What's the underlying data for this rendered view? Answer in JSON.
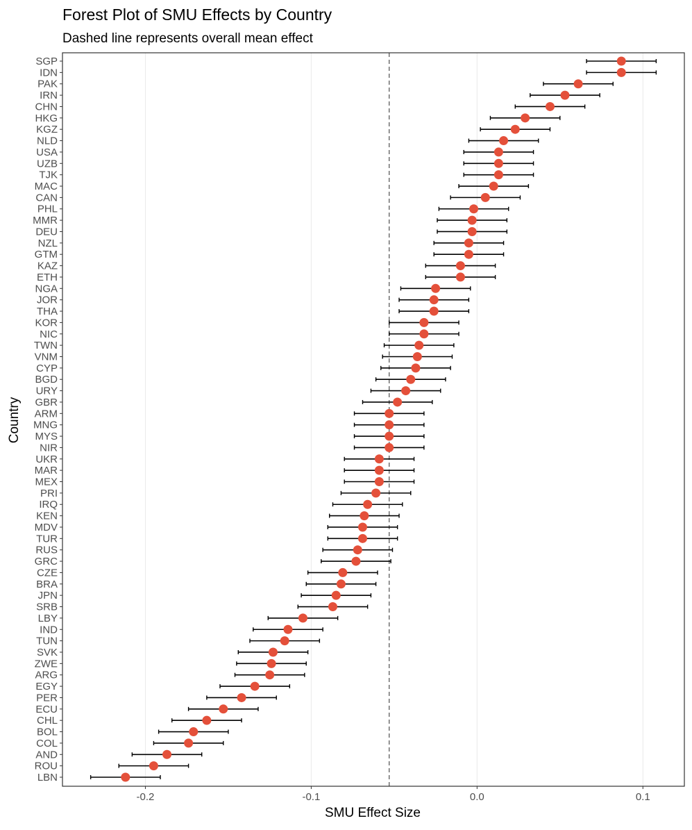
{
  "chart_data": {
    "type": "scatter",
    "title": "Forest Plot of SMU Effects by Country",
    "subtitle": "Dashed line represents overall mean effect",
    "xlabel": "SMU Effect Size",
    "ylabel": "Country",
    "xlim": [
      -0.25,
      0.125
    ],
    "xticks": [
      -0.2,
      -0.1,
      0.0,
      0.1
    ],
    "xtick_labels": [
      "-0.2",
      "-0.1",
      "0.0",
      "0.1"
    ],
    "mean_effect": -0.053,
    "point_color": "#E4503A",
    "grid": "vertical major lines only",
    "categories": [
      "SGP",
      "IDN",
      "PAK",
      "IRN",
      "CHN",
      "HKG",
      "KGZ",
      "NLD",
      "USA",
      "UZB",
      "TJK",
      "MAC",
      "CAN",
      "PHL",
      "MMR",
      "DEU",
      "NZL",
      "GTM",
      "KAZ",
      "ETH",
      "NGA",
      "JOR",
      "THA",
      "KOR",
      "NIC",
      "TWN",
      "VNM",
      "CYP",
      "BGD",
      "URY",
      "GBR",
      "ARM",
      "MNG",
      "MYS",
      "NIR",
      "UKR",
      "MAR",
      "MEX",
      "PRI",
      "IRQ",
      "KEN",
      "MDV",
      "TUR",
      "RUS",
      "GRC",
      "CZE",
      "BRA",
      "JPN",
      "SRB",
      "LBY",
      "IND",
      "TUN",
      "SVK",
      "ZWE",
      "ARG",
      "EGY",
      "PER",
      "ECU",
      "CHL",
      "BOL",
      "COL",
      "AND",
      "ROU",
      "LBN"
    ],
    "estimates": [
      0.087,
      0.087,
      0.061,
      0.053,
      0.044,
      0.029,
      0.023,
      0.016,
      0.013,
      0.013,
      0.013,
      0.01,
      0.005,
      -0.002,
      -0.003,
      -0.003,
      -0.005,
      -0.005,
      -0.01,
      -0.01,
      -0.025,
      -0.026,
      -0.026,
      -0.032,
      -0.032,
      -0.035,
      -0.036,
      -0.037,
      -0.04,
      -0.043,
      -0.048,
      -0.053,
      -0.053,
      -0.053,
      -0.053,
      -0.059,
      -0.059,
      -0.059,
      -0.061,
      -0.066,
      -0.068,
      -0.069,
      -0.069,
      -0.072,
      -0.073,
      -0.081,
      -0.082,
      -0.085,
      -0.087,
      -0.105,
      -0.114,
      -0.116,
      -0.123,
      -0.124,
      -0.125,
      -0.134,
      -0.142,
      -0.153,
      -0.163,
      -0.171,
      -0.174,
      -0.187,
      -0.195,
      -0.212
    ],
    "ci_lower": [
      0.066,
      0.066,
      0.04,
      0.032,
      0.023,
      0.008,
      0.002,
      -0.005,
      -0.008,
      -0.008,
      -0.008,
      -0.011,
      -0.016,
      -0.023,
      -0.024,
      -0.024,
      -0.026,
      -0.026,
      -0.031,
      -0.031,
      -0.046,
      -0.047,
      -0.047,
      -0.053,
      -0.053,
      -0.056,
      -0.057,
      -0.058,
      -0.061,
      -0.064,
      -0.069,
      -0.074,
      -0.074,
      -0.074,
      -0.074,
      -0.08,
      -0.08,
      -0.08,
      -0.082,
      -0.087,
      -0.089,
      -0.09,
      -0.09,
      -0.093,
      -0.094,
      -0.102,
      -0.103,
      -0.106,
      -0.108,
      -0.126,
      -0.135,
      -0.137,
      -0.144,
      -0.145,
      -0.146,
      -0.155,
      -0.163,
      -0.174,
      -0.184,
      -0.192,
      -0.195,
      -0.208,
      -0.216,
      -0.233
    ],
    "ci_upper": [
      0.108,
      0.108,
      0.082,
      0.074,
      0.065,
      0.05,
      0.044,
      0.037,
      0.034,
      0.034,
      0.034,
      0.031,
      0.026,
      0.019,
      0.018,
      0.018,
      0.016,
      0.016,
      0.011,
      0.011,
      -0.004,
      -0.005,
      -0.005,
      -0.011,
      -0.011,
      -0.014,
      -0.015,
      -0.016,
      -0.019,
      -0.022,
      -0.027,
      -0.032,
      -0.032,
      -0.032,
      -0.032,
      -0.038,
      -0.038,
      -0.038,
      -0.04,
      -0.045,
      -0.047,
      -0.048,
      -0.048,
      -0.051,
      -0.052,
      -0.06,
      -0.061,
      -0.064,
      -0.066,
      -0.084,
      -0.093,
      -0.095,
      -0.102,
      -0.103,
      -0.104,
      -0.113,
      -0.121,
      -0.132,
      -0.142,
      -0.15,
      -0.153,
      -0.166,
      -0.174,
      -0.191
    ]
  }
}
